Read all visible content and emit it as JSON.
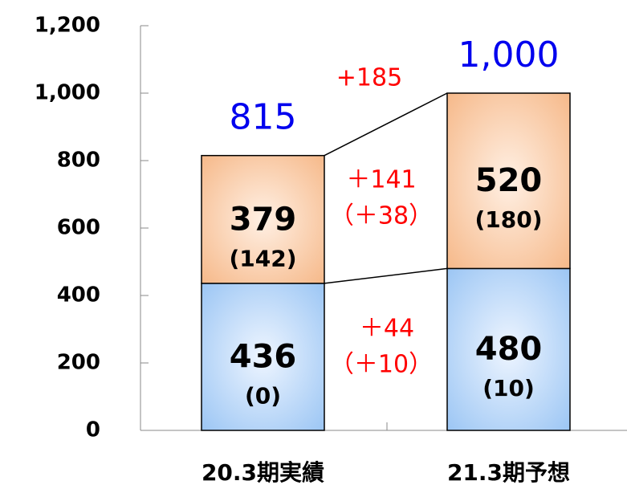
{
  "chart_data": {
    "type": "stacked_bar",
    "categories": [
      "20.3期実績",
      "21.3期予想"
    ],
    "series": [
      {
        "color": "#9cc6f4",
        "values": [
          436,
          480
        ],
        "sub_labels": [
          "(0)",
          "(10)"
        ]
      },
      {
        "color": "#f6b98a",
        "values": [
          379,
          520
        ],
        "sub_labels": [
          "(142)",
          "(180)"
        ]
      }
    ],
    "totals": {
      "values": [
        815,
        1000
      ],
      "value_labels": [
        "815",
        "1,000"
      ],
      "color": "#0000ee"
    },
    "annotations": [
      "+185",
      "＋141",
      "（＋38）",
      "＋44",
      "（＋10）"
    ],
    "annotation_color": "#ff0000",
    "ylim": [
      0,
      1200
    ],
    "yticks": [
      0,
      200,
      400,
      600,
      800,
      {
        "value": 1000,
        "label": "1,000"
      },
      {
        "value": 1200,
        "label": "1,200"
      }
    ],
    "grid": false
  }
}
